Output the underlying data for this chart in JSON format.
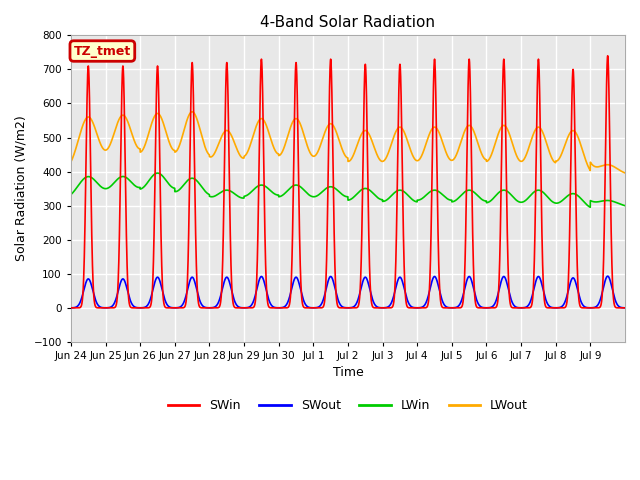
{
  "title": "4-Band Solar Radiation",
  "ylabel": "Solar Radiation (W/m2)",
  "xlabel": "Time",
  "ylim": [
    -100,
    800
  ],
  "annotation_label": "TZ_tmet",
  "annotation_color": "#cc0000",
  "annotation_bg": "#ffffcc",
  "series": {
    "SWin": {
      "color": "#ff0000",
      "lw": 1.2
    },
    "SWout": {
      "color": "#0000ff",
      "lw": 1.2
    },
    "LWin": {
      "color": "#00cc00",
      "lw": 1.2
    },
    "LWout": {
      "color": "#ffaa00",
      "lw": 1.2
    }
  },
  "n_days": 16,
  "ppd": 288,
  "SWin_peaks": [
    710,
    710,
    710,
    720,
    720,
    730,
    720,
    730,
    715,
    715,
    730,
    730,
    730,
    730,
    700,
    740
  ],
  "SWout_peaks": [
    85,
    85,
    90,
    90,
    90,
    92,
    90,
    92,
    90,
    90,
    92,
    92,
    92,
    92,
    88,
    93
  ],
  "LWin_night": [
    315,
    315,
    310,
    300,
    295,
    300,
    295,
    295,
    285,
    280,
    285,
    280,
    275,
    275,
    275,
    295
  ],
  "LWin_day_add": [
    70,
    70,
    85,
    80,
    50,
    60,
    65,
    60,
    65,
    65,
    60,
    65,
    70,
    70,
    60,
    20
  ],
  "LWout_night": [
    395,
    395,
    385,
    380,
    375,
    380,
    375,
    375,
    365,
    365,
    365,
    365,
    360,
    360,
    365,
    390
  ],
  "LWout_day_add": [
    165,
    170,
    185,
    195,
    145,
    175,
    180,
    165,
    155,
    165,
    165,
    170,
    175,
    170,
    155,
    30
  ],
  "bg_color": "#e8e8e8",
  "grid_color": "#ffffff",
  "tick_labels": [
    "Jun 24",
    "Jun 25",
    "Jun 26",
    "Jun 27",
    "Jun 28",
    "Jun 29",
    "Jun 30",
    "Jul 1",
    "Jul 2",
    "Jul 3",
    "Jul 4",
    "Jul 5",
    "Jul 6",
    "Jul 7",
    "Jul 8",
    "Jul 9"
  ]
}
